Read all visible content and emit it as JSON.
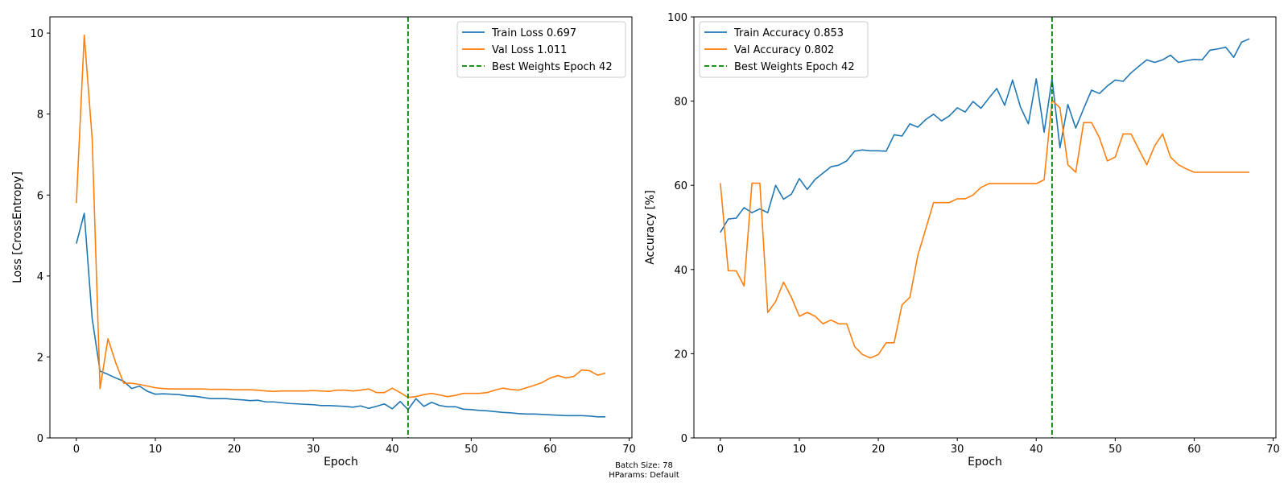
{
  "footnote": {
    "batch_size": "Batch Size: 78",
    "hparams": "HParams: Default"
  },
  "chart_data": [
    {
      "type": "line",
      "title": "",
      "xlabel": "Epoch",
      "ylabel": "Loss [CrossEntropy]",
      "xlim": [
        -3.35,
        70.35
      ],
      "ylim": [
        0,
        10.4
      ],
      "xticks": [
        0,
        10,
        20,
        30,
        40,
        50,
        60,
        70
      ],
      "yticks": [
        0,
        2,
        4,
        6,
        8,
        10
      ],
      "grid": false,
      "legend_position": "top-right",
      "best_epoch": 42,
      "series": [
        {
          "name": "Train Loss 0.697",
          "color": "#1f77b4",
          "style": "solid",
          "x": [
            0,
            1,
            2,
            3,
            4,
            5,
            6,
            7,
            8,
            9,
            10,
            11,
            12,
            13,
            14,
            15,
            16,
            17,
            18,
            19,
            20,
            21,
            22,
            23,
            24,
            25,
            26,
            27,
            28,
            29,
            30,
            31,
            32,
            33,
            34,
            35,
            36,
            37,
            38,
            39,
            40,
            41,
            42,
            43,
            44,
            45,
            46,
            47,
            48,
            49,
            50,
            51,
            52,
            53,
            54,
            55,
            56,
            57,
            58,
            59,
            60,
            61,
            62,
            63,
            64,
            65,
            66,
            67
          ],
          "values": [
            4.8,
            5.55,
            2.95,
            1.65,
            1.57,
            1.48,
            1.4,
            1.22,
            1.28,
            1.15,
            1.08,
            1.09,
            1.08,
            1.07,
            1.04,
            1.03,
            1.0,
            0.97,
            0.97,
            0.97,
            0.95,
            0.94,
            0.92,
            0.93,
            0.89,
            0.89,
            0.87,
            0.85,
            0.84,
            0.83,
            0.82,
            0.8,
            0.8,
            0.79,
            0.78,
            0.76,
            0.79,
            0.73,
            0.78,
            0.84,
            0.72,
            0.9,
            0.7,
            0.97,
            0.78,
            0.88,
            0.8,
            0.77,
            0.77,
            0.71,
            0.7,
            0.68,
            0.67,
            0.65,
            0.63,
            0.62,
            0.6,
            0.59,
            0.59,
            0.58,
            0.57,
            0.56,
            0.55,
            0.55,
            0.55,
            0.54,
            0.52,
            0.52
          ]
        },
        {
          "name": "Val Loss 1.011",
          "color": "#ff7f0e",
          "style": "solid",
          "x": [
            0,
            1,
            2,
            3,
            4,
            5,
            6,
            7,
            8,
            9,
            10,
            11,
            12,
            13,
            14,
            15,
            16,
            17,
            18,
            19,
            20,
            21,
            22,
            23,
            24,
            25,
            26,
            27,
            28,
            29,
            30,
            31,
            32,
            33,
            34,
            35,
            36,
            37,
            38,
            39,
            40,
            41,
            42,
            43,
            44,
            45,
            46,
            47,
            48,
            49,
            50,
            51,
            52,
            53,
            54,
            55,
            56,
            57,
            58,
            59,
            60,
            61,
            62,
            63,
            64,
            65,
            66,
            67
          ],
          "values": [
            5.8,
            9.95,
            7.4,
            1.22,
            2.45,
            1.85,
            1.35,
            1.35,
            1.32,
            1.28,
            1.24,
            1.22,
            1.21,
            1.21,
            1.21,
            1.21,
            1.21,
            1.2,
            1.2,
            1.2,
            1.19,
            1.19,
            1.19,
            1.18,
            1.16,
            1.15,
            1.16,
            1.16,
            1.16,
            1.16,
            1.17,
            1.16,
            1.15,
            1.18,
            1.18,
            1.16,
            1.18,
            1.21,
            1.12,
            1.12,
            1.23,
            1.12,
            1.0,
            1.02,
            1.07,
            1.1,
            1.06,
            1.02,
            1.05,
            1.1,
            1.1,
            1.1,
            1.12,
            1.18,
            1.23,
            1.2,
            1.18,
            1.24,
            1.3,
            1.37,
            1.48,
            1.54,
            1.48,
            1.52,
            1.68,
            1.66,
            1.55,
            1.6
          ]
        },
        {
          "name": "Best Weights Epoch 42",
          "color": "#008000",
          "style": "dashed",
          "vline_x": 42
        }
      ]
    },
    {
      "type": "line",
      "title": "",
      "xlabel": "Epoch",
      "ylabel": "Accuracy [%]",
      "xlim": [
        -3.35,
        70.35
      ],
      "ylim": [
        0,
        100
      ],
      "xticks": [
        0,
        10,
        20,
        30,
        40,
        50,
        60,
        70
      ],
      "yticks": [
        0,
        20,
        40,
        60,
        80,
        100
      ],
      "grid": false,
      "legend_position": "top-left",
      "best_epoch": 42,
      "series": [
        {
          "name": "Train Accuracy 0.853",
          "color": "#1f77b4",
          "style": "solid",
          "x": [
            0,
            1,
            2,
            3,
            4,
            5,
            6,
            7,
            8,
            9,
            10,
            11,
            12,
            13,
            14,
            15,
            16,
            17,
            18,
            19,
            20,
            21,
            22,
            23,
            24,
            25,
            26,
            27,
            28,
            29,
            30,
            31,
            32,
            33,
            34,
            35,
            36,
            37,
            38,
            39,
            40,
            41,
            42,
            43,
            44,
            45,
            46,
            47,
            48,
            49,
            50,
            51,
            52,
            53,
            54,
            55,
            56,
            57,
            58,
            59,
            60,
            61,
            62,
            63,
            64,
            65,
            66,
            67
          ],
          "values": [
            48.8,
            52.0,
            52.2,
            54.7,
            53.5,
            54.4,
            53.5,
            60.0,
            56.7,
            57.9,
            61.6,
            59.0,
            61.4,
            62.9,
            64.4,
            64.8,
            65.8,
            68.1,
            68.4,
            68.2,
            68.2,
            68.1,
            72.0,
            71.7,
            74.6,
            73.8,
            75.6,
            76.9,
            75.3,
            76.5,
            78.4,
            77.4,
            79.9,
            78.3,
            80.7,
            83.0,
            79.0,
            85.0,
            78.6,
            74.6,
            85.3,
            72.6,
            85.3,
            68.9,
            79.2,
            73.6,
            78.2,
            82.6,
            81.8,
            83.6,
            85.0,
            84.7,
            86.7,
            88.3,
            89.8,
            89.2,
            89.8,
            90.9,
            89.2,
            89.6,
            89.9,
            89.8,
            92.1,
            92.4,
            92.8,
            90.4,
            94.0,
            94.8
          ]
        },
        {
          "name": "Val Accuracy 0.802",
          "color": "#ff7f0e",
          "style": "solid",
          "x": [
            0,
            1,
            2,
            3,
            4,
            5,
            6,
            7,
            8,
            9,
            10,
            11,
            12,
            13,
            14,
            15,
            16,
            17,
            18,
            19,
            20,
            21,
            22,
            23,
            24,
            25,
            26,
            27,
            28,
            29,
            30,
            31,
            32,
            33,
            34,
            35,
            36,
            37,
            38,
            39,
            40,
            41,
            42,
            43,
            44,
            45,
            46,
            47,
            48,
            49,
            50,
            51,
            52,
            53,
            54,
            55,
            56,
            57,
            58,
            59,
            60,
            61,
            62,
            63,
            64,
            65,
            66,
            67
          ],
          "values": [
            60.5,
            39.7,
            39.7,
            36.1,
            60.5,
            60.5,
            29.8,
            32.4,
            37.0,
            33.4,
            28.9,
            29.8,
            28.9,
            27.1,
            28.0,
            27.1,
            27.1,
            21.7,
            19.8,
            19.0,
            19.8,
            22.6,
            22.6,
            31.6,
            33.4,
            43.3,
            49.6,
            55.9,
            55.9,
            55.9,
            56.8,
            56.8,
            57.7,
            59.5,
            60.4,
            60.4,
            60.4,
            60.4,
            60.4,
            60.4,
            60.4,
            61.3,
            80.2,
            78.4,
            64.9,
            63.1,
            74.9,
            74.9,
            71.3,
            65.8,
            66.7,
            72.2,
            72.2,
            68.5,
            64.9,
            69.4,
            72.2,
            66.7,
            64.9,
            63.9,
            63.1,
            63.1,
            63.1,
            63.1,
            63.1,
            63.1,
            63.1,
            63.1
          ]
        },
        {
          "name": "Best Weights Epoch 42",
          "color": "#008000",
          "style": "dashed",
          "vline_x": 42
        }
      ]
    }
  ]
}
